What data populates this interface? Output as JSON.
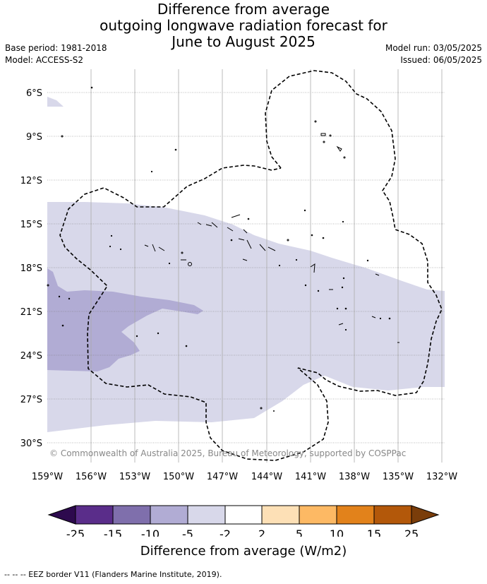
{
  "title": {
    "line1": "Difference from average",
    "line2": "outgoing longwave radiation forecast for",
    "line3": "June to August 2025"
  },
  "meta": {
    "base_period": "Base period: 1981-2018",
    "model": "Model: ACCESS-S2",
    "model_run": "Model run: 03/05/2025",
    "issued": "Issued: 06/05/2025"
  },
  "map": {
    "lat_labels": [
      "6°S",
      "9°S",
      "12°S",
      "15°S",
      "18°S",
      "21°S",
      "24°S",
      "27°S",
      "30°S"
    ],
    "lon_labels": [
      "159°W",
      "156°W",
      "153°W",
      "150°W",
      "147°W",
      "144°W",
      "141°W",
      "138°W",
      "135°W",
      "132°W"
    ],
    "copyright": "© Commonwealth of Australia 2025, Bureau of Meteorology, supported by COSPPac"
  },
  "colorbar": {
    "ticks": [
      "-25",
      "-15",
      "-10",
      "-5",
      "-2",
      "2",
      "5",
      "10",
      "15",
      "25"
    ],
    "colors": {
      "below_min": "#2d0a4e",
      "bins": [
        "#5a2d8a",
        "#7f6fac",
        "#b1acd4",
        "#d8d8ea",
        "#ffffff",
        "#fde0b6",
        "#fdb964",
        "#e2821b",
        "#b3580a"
      ],
      "above_max": "#7a3d0a"
    },
    "title": "Difference from average (W/m2)"
  },
  "footnote": "--  --  -- EEZ border V11 (Flanders Marine Institute, 2019)."
}
